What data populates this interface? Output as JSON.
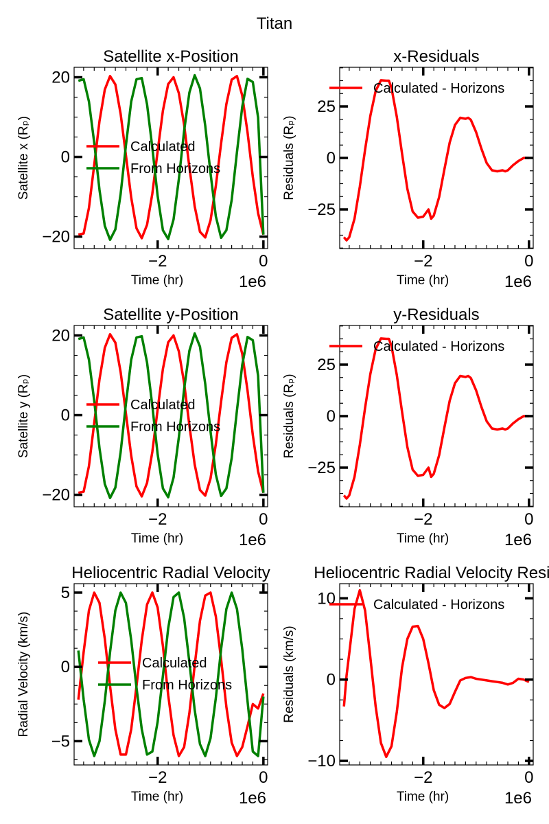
{
  "figure": {
    "title": "Titan"
  },
  "chart_data": [
    {
      "type": "line",
      "title": "Satellite x-Position",
      "xlabel": "Time (hr)",
      "ylabel": "Satellite x (Rₚ)",
      "x_offset_label": "1e6",
      "xlim": [
        -3.58,
        0.08
      ],
      "ylim": [
        -23,
        22.5
      ],
      "xticks": [
        -2,
        0
      ],
      "yticks": [
        -20,
        0,
        20
      ],
      "legend": {
        "location": "center-left"
      },
      "series": [
        {
          "name": "Calculated",
          "color": "#ff0000",
          "x": [
            -3.5,
            -3.4,
            -3.3,
            -3.2,
            -3.1,
            -3.0,
            -2.9,
            -2.8,
            -2.7,
            -2.6,
            -2.5,
            -2.4,
            -2.3,
            -2.2,
            -2.1,
            -2.0,
            -1.9,
            -1.8,
            -1.7,
            -1.6,
            -1.5,
            -1.4,
            -1.3,
            -1.2,
            -1.1,
            -1.0,
            -0.9,
            -0.8,
            -0.7,
            -0.6,
            -0.5,
            -0.4,
            -0.3,
            -0.2,
            -0.1,
            0.0
          ],
          "y": [
            -19.5,
            -19.2,
            -12.8,
            -2.0,
            9.0,
            16.9,
            20.3,
            18.2,
            10.8,
            0.4,
            -10.2,
            -17.9,
            -20.4,
            -17.0,
            -9.2,
            1.4,
            11.6,
            18.3,
            20.0,
            16.0,
            8.1,
            -2.6,
            -12.4,
            -18.8,
            -20.2,
            -15.9,
            -7.3,
            3.4,
            13.3,
            19.4,
            20.3,
            15.4,
            6.2,
            -5.0,
            -14.1,
            -19.5
          ]
        },
        {
          "name": "From Horizons",
          "color": "#008000",
          "x": [
            -3.5,
            -3.4,
            -3.3,
            -3.2,
            -3.1,
            -3.0,
            -2.9,
            -2.8,
            -2.7,
            -2.6,
            -2.5,
            -2.4,
            -2.3,
            -2.2,
            -2.1,
            -2.0,
            -1.9,
            -1.8,
            -1.7,
            -1.6,
            -1.5,
            -1.4,
            -1.3,
            -1.2,
            -1.1,
            -1.0,
            -0.9,
            -0.8,
            -0.7,
            -0.6,
            -0.5,
            -0.4,
            -0.3,
            -0.2,
            -0.1,
            0.0
          ],
          "y": [
            19.1,
            19.5,
            13.9,
            3.6,
            -8.3,
            -17.3,
            -20.8,
            -18.2,
            -9.3,
            2.9,
            13.9,
            19.5,
            19.8,
            13.2,
            2.3,
            -9.8,
            -18.4,
            -20.6,
            -15.7,
            -5.6,
            6.5,
            16.2,
            20.5,
            17.2,
            7.8,
            -4.1,
            -14.9,
            -20.3,
            -18.4,
            -10.8,
            1.2,
            12.6,
            19.6,
            18.8,
            9.9,
            -19.5
          ]
        }
      ]
    },
    {
      "type": "line",
      "title": "x-Residuals",
      "xlabel": "Time (hr)",
      "ylabel": "Residuals (Rₚ)",
      "x_offset_label": "1e6",
      "xlim": [
        -3.58,
        0.08
      ],
      "ylim": [
        -44,
        44
      ],
      "xticks": [
        -2,
        0
      ],
      "yticks": [
        -25,
        0,
        25
      ],
      "legend": {
        "location": "top-right"
      },
      "series": [
        {
          "name": "Calculated - Horizons",
          "color": "#ff0000",
          "x": [
            -3.5,
            -3.45,
            -3.4,
            -3.3,
            -3.2,
            -3.1,
            -3.0,
            -2.9,
            -2.8,
            -2.7,
            -2.65,
            -2.6,
            -2.5,
            -2.4,
            -2.3,
            -2.2,
            -2.1,
            -2.0,
            -1.9,
            -1.85,
            -1.8,
            -1.7,
            -1.6,
            -1.5,
            -1.4,
            -1.3,
            -1.2,
            -1.15,
            -1.1,
            -1.0,
            -0.9,
            -0.8,
            -0.7,
            -0.6,
            -0.5,
            -0.45,
            -0.4,
            -0.3,
            -0.2,
            -0.1,
            0.0
          ],
          "y": [
            -38.5,
            -40.0,
            -38.5,
            -29.5,
            -14.0,
            4.0,
            20.5,
            32.5,
            37.7,
            37.5,
            37.5,
            34.0,
            20.0,
            2.0,
            -15.0,
            -26.0,
            -29.0,
            -28.5,
            -25.0,
            -29.5,
            -28.0,
            -19.0,
            -5.5,
            7.5,
            16.0,
            19.5,
            19.0,
            19.5,
            18.5,
            12.5,
            4.5,
            -2.5,
            -6.0,
            -6.5,
            -6.0,
            -6.5,
            -6.0,
            -3.5,
            -1.5,
            0.0,
            0.0
          ]
        }
      ]
    },
    {
      "type": "line",
      "title": "Satellite y-Position",
      "xlabel": "Time (hr)",
      "ylabel": "Satellite y (Rₚ)",
      "x_offset_label": "1e6",
      "xlim": [
        -3.58,
        0.08
      ],
      "ylim": [
        -23,
        22.5
      ],
      "xticks": [
        -2,
        0
      ],
      "yticks": [
        -20,
        0,
        20
      ],
      "legend": {
        "location": "center-left"
      },
      "series": [
        {
          "name": "Calculated",
          "color": "#ff0000",
          "x": [
            -3.5,
            -3.4,
            -3.3,
            -3.2,
            -3.1,
            -3.0,
            -2.9,
            -2.8,
            -2.7,
            -2.6,
            -2.5,
            -2.4,
            -2.3,
            -2.2,
            -2.1,
            -2.0,
            -1.9,
            -1.8,
            -1.7,
            -1.6,
            -1.5,
            -1.4,
            -1.3,
            -1.2,
            -1.1,
            -1.0,
            -0.9,
            -0.8,
            -0.7,
            -0.6,
            -0.5,
            -0.4,
            -0.3,
            -0.2,
            -0.1,
            0.0
          ],
          "y": [
            -19.5,
            -19.2,
            -12.8,
            -2.0,
            9.0,
            16.9,
            20.3,
            18.2,
            10.8,
            0.4,
            -10.2,
            -17.9,
            -20.4,
            -17.0,
            -9.2,
            1.4,
            11.6,
            18.3,
            20.0,
            16.0,
            8.1,
            -2.6,
            -12.4,
            -18.8,
            -20.2,
            -15.9,
            -7.3,
            3.4,
            13.3,
            19.4,
            20.3,
            15.4,
            6.2,
            -5.0,
            -14.1,
            -19.5
          ]
        },
        {
          "name": "From Horizons",
          "color": "#008000",
          "x": [
            -3.5,
            -3.4,
            -3.3,
            -3.2,
            -3.1,
            -3.0,
            -2.9,
            -2.8,
            -2.7,
            -2.6,
            -2.5,
            -2.4,
            -2.3,
            -2.2,
            -2.1,
            -2.0,
            -1.9,
            -1.8,
            -1.7,
            -1.6,
            -1.5,
            -1.4,
            -1.3,
            -1.2,
            -1.1,
            -1.0,
            -0.9,
            -0.8,
            -0.7,
            -0.6,
            -0.5,
            -0.4,
            -0.3,
            -0.2,
            -0.1,
            0.0
          ],
          "y": [
            19.1,
            19.5,
            13.9,
            3.6,
            -8.3,
            -17.3,
            -20.8,
            -18.2,
            -9.3,
            2.9,
            13.9,
            19.5,
            19.8,
            13.2,
            2.3,
            -9.8,
            -18.4,
            -20.6,
            -15.7,
            -5.6,
            6.5,
            16.2,
            20.5,
            17.2,
            7.8,
            -4.1,
            -14.9,
            -20.3,
            -18.4,
            -10.8,
            1.2,
            12.6,
            19.6,
            18.8,
            9.9,
            -19.5
          ]
        }
      ]
    },
    {
      "type": "line",
      "title": "y-Residuals",
      "xlabel": "Time (hr)",
      "ylabel": "Residuals (Rₚ)",
      "x_offset_label": "1e6",
      "xlim": [
        -3.58,
        0.08
      ],
      "ylim": [
        -44,
        44
      ],
      "xticks": [
        -2,
        0
      ],
      "yticks": [
        -25,
        0,
        25
      ],
      "legend": {
        "location": "top-right"
      },
      "series": [
        {
          "name": "Calculated - Horizons",
          "color": "#ff0000",
          "x": [
            -3.5,
            -3.45,
            -3.4,
            -3.3,
            -3.2,
            -3.1,
            -3.0,
            -2.9,
            -2.8,
            -2.7,
            -2.65,
            -2.6,
            -2.5,
            -2.4,
            -2.3,
            -2.2,
            -2.1,
            -2.0,
            -1.9,
            -1.85,
            -1.8,
            -1.7,
            -1.6,
            -1.5,
            -1.4,
            -1.3,
            -1.2,
            -1.15,
            -1.1,
            -1.0,
            -0.9,
            -0.8,
            -0.7,
            -0.6,
            -0.5,
            -0.45,
            -0.4,
            -0.3,
            -0.2,
            -0.1,
            0.0
          ],
          "y": [
            -38.5,
            -40.0,
            -38.5,
            -29.5,
            -14.0,
            4.0,
            20.5,
            32.5,
            37.7,
            37.5,
            37.5,
            34.0,
            20.0,
            2.0,
            -15.0,
            -26.0,
            -29.0,
            -28.5,
            -25.0,
            -29.5,
            -28.0,
            -19.0,
            -5.5,
            7.5,
            16.0,
            19.5,
            19.0,
            19.5,
            18.5,
            12.5,
            4.5,
            -2.5,
            -6.0,
            -6.5,
            -6.0,
            -6.5,
            -6.0,
            -3.5,
            -1.5,
            0.0,
            0.0
          ]
        }
      ]
    },
    {
      "type": "line",
      "title": "Heliocentric Radial Velocity",
      "xlabel": "Time (hr)",
      "ylabel": "Radial Velocity (km/s)",
      "x_offset_label": "1e6",
      "xlim": [
        -3.58,
        0.08
      ],
      "ylim": [
        -6.6,
        5.6
      ],
      "xticks": [
        -2,
        0
      ],
      "yticks": [
        -5,
        0,
        5
      ],
      "legend": {
        "location": "center-left"
      },
      "series": [
        {
          "name": "Calculated",
          "color": "#ff0000",
          "x": [
            -3.5,
            -3.4,
            -3.3,
            -3.2,
            -3.1,
            -3.0,
            -2.9,
            -2.8,
            -2.7,
            -2.6,
            -2.5,
            -2.4,
            -2.3,
            -2.2,
            -2.1,
            -2.0,
            -1.9,
            -1.8,
            -1.7,
            -1.6,
            -1.5,
            -1.4,
            -1.3,
            -1.2,
            -1.1,
            -1.0,
            -0.9,
            -0.8,
            -0.7,
            -0.6,
            -0.5,
            -0.4,
            -0.3,
            -0.2,
            -0.1,
            0.0
          ],
          "y": [
            -2.2,
            1.0,
            3.8,
            5.0,
            4.3,
            1.9,
            -1.3,
            -4.2,
            -5.9,
            -5.9,
            -4.2,
            -1.3,
            1.8,
            4.2,
            5.0,
            4.0,
            1.4,
            -1.9,
            -4.6,
            -6.0,
            -5.4,
            -3.1,
            0.1,
            3.1,
            4.8,
            5.0,
            3.4,
            0.5,
            -2.7,
            -5.1,
            -6.0,
            -5.4,
            -4.0,
            -2.5,
            -2.8,
            -1.8
          ]
        },
        {
          "name": "From Horizons",
          "color": "#008000",
          "x": [
            -3.5,
            -3.4,
            -3.3,
            -3.2,
            -3.1,
            -3.0,
            -2.9,
            -2.8,
            -2.7,
            -2.6,
            -2.5,
            -2.4,
            -2.3,
            -2.2,
            -2.1,
            -2.0,
            -1.9,
            -1.8,
            -1.7,
            -1.6,
            -1.5,
            -1.4,
            -1.3,
            -1.2,
            -1.1,
            -1.0,
            -0.9,
            -0.8,
            -0.7,
            -0.6,
            -0.5,
            -0.4,
            -0.3,
            -0.2,
            -0.1,
            0.0
          ],
          "y": [
            1.1,
            -2.2,
            -4.9,
            -6.0,
            -5.0,
            -2.3,
            1.0,
            3.8,
            5.0,
            4.3,
            1.8,
            -1.4,
            -4.2,
            -5.9,
            -5.7,
            -3.7,
            -0.6,
            2.6,
            4.7,
            5.0,
            3.3,
            0.3,
            -2.9,
            -5.2,
            -6.0,
            -4.8,
            -2.1,
            1.2,
            3.9,
            5.0,
            3.9,
            1.2,
            -2.3,
            -5.7,
            -6.0,
            -2.0
          ]
        }
      ]
    },
    {
      "type": "line",
      "title": "Heliocentric Radial Velocity Resid",
      "xlabel": "Time (hr)",
      "ylabel": "Residuals (km/s)",
      "x_offset_label": "1e6",
      "xlim": [
        -3.58,
        0.08
      ],
      "ylim": [
        -10.5,
        11.8
      ],
      "xticks": [
        -2,
        0
      ],
      "yticks": [
        -10,
        0,
        10
      ],
      "legend": {
        "location": "top-right"
      },
      "series": [
        {
          "name": "Calculated - Horizons",
          "color": "#ff0000",
          "x": [
            -3.5,
            -3.45,
            -3.4,
            -3.3,
            -3.2,
            -3.1,
            -3.0,
            -2.9,
            -2.8,
            -2.7,
            -2.6,
            -2.5,
            -2.4,
            -2.3,
            -2.2,
            -2.1,
            -2.0,
            -1.9,
            -1.8,
            -1.7,
            -1.6,
            -1.5,
            -1.4,
            -1.3,
            -1.2,
            -1.1,
            -1.0,
            -0.9,
            -0.8,
            -0.7,
            -0.6,
            -0.5,
            -0.4,
            -0.3,
            -0.2,
            -0.1,
            0.0
          ],
          "y": [
            -3.3,
            0.5,
            3.2,
            8.7,
            11.0,
            8.5,
            2.7,
            -3.3,
            -7.8,
            -9.5,
            -8.2,
            -4.0,
            1.5,
            5.0,
            6.5,
            6.6,
            5.0,
            2.0,
            -1.3,
            -3.1,
            -3.5,
            -3.0,
            -1.5,
            -0.1,
            0.2,
            0.3,
            0.1,
            0.0,
            -0.1,
            -0.2,
            -0.3,
            -0.4,
            -0.6,
            -0.4,
            0.1,
            0.0,
            -0.3
          ]
        }
      ]
    }
  ]
}
